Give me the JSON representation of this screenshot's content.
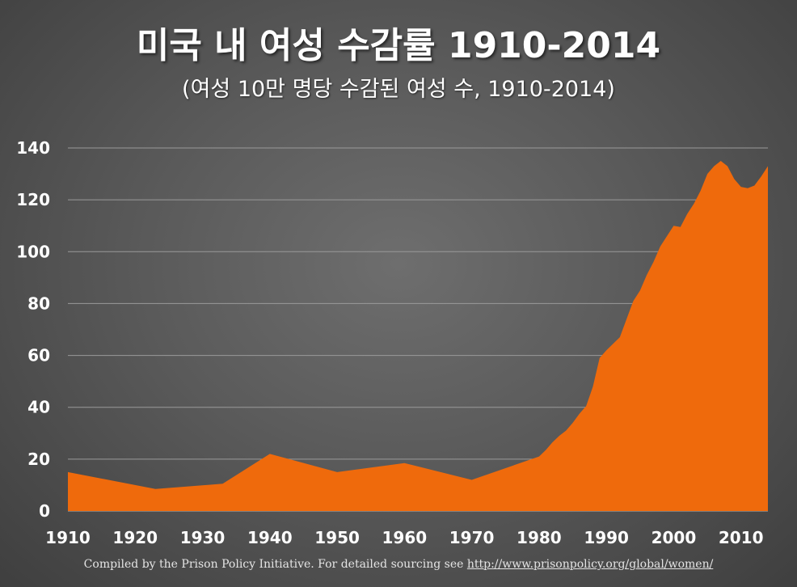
{
  "title": "미국 내 여성 수감률 1910-2014",
  "subtitle": "(여성 10만 명당 수감된 여성 수, 1910-2014)",
  "source": {
    "prefix": "Compiled by the Prison Policy Initiative. For detailed sourcing see ",
    "link": "http://www.prisonpolicy.org/global/women/"
  },
  "colors": {
    "area": "#ef6a0c",
    "grid": "#9a9a9a",
    "text": "#ffffff"
  },
  "chart_data": {
    "type": "area",
    "title": "미국 내 여성 수감률 1910-2014",
    "subtitle": "(여성 10만 명당 수감된 여성 수, 1910-2014)",
    "xlabel": "",
    "ylabel": "",
    "xlim": [
      1910,
      2014
    ],
    "ylim": [
      0,
      140
    ],
    "xticks": [
      1910,
      1920,
      1930,
      1940,
      1950,
      1960,
      1970,
      1980,
      1990,
      2000,
      2010
    ],
    "yticks": [
      0,
      20,
      40,
      60,
      80,
      100,
      120,
      140
    ],
    "grid": true,
    "legend": "none",
    "series": [
      {
        "x": [
          1910,
          1923,
          1933,
          1940,
          1950,
          1960,
          1970,
          1980,
          1981,
          1982,
          1983,
          1984,
          1985,
          1986,
          1987,
          1988,
          1989,
          1990,
          1991,
          1992,
          1993,
          1994,
          1995,
          1996,
          1997,
          1998,
          1999,
          2000,
          2001,
          2002,
          2003,
          2004,
          2005,
          2006,
          2007,
          2008,
          2009,
          2010,
          2011,
          2012,
          2013,
          2014
        ],
        "y": [
          15,
          8.5,
          10.5,
          22,
          15,
          18.5,
          12,
          21,
          23.5,
          26.5,
          29,
          31,
          34,
          37.5,
          40.5,
          48,
          59,
          62,
          64.5,
          67,
          74,
          81,
          85,
          91,
          96,
          102,
          106,
          110,
          109.5,
          114.5,
          118.5,
          123.5,
          130,
          133,
          135,
          133,
          128,
          125,
          124.5,
          125.5,
          129,
          133
        ]
      }
    ]
  }
}
